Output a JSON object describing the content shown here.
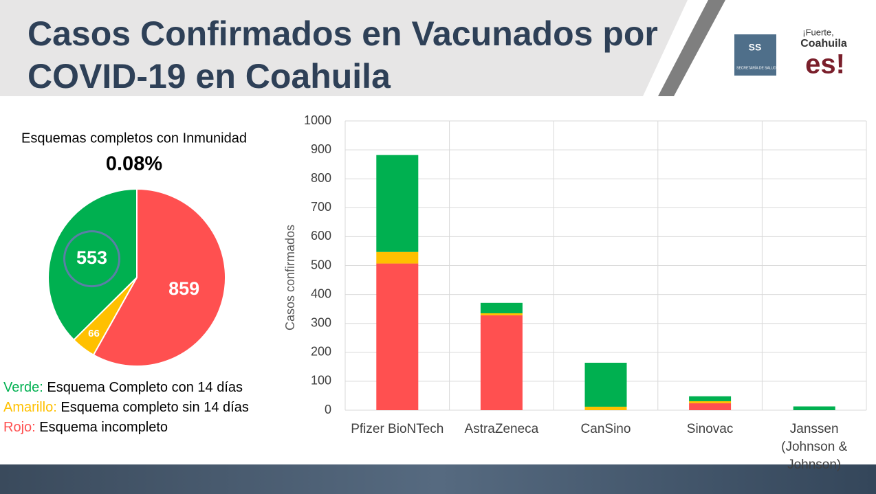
{
  "header": {
    "title": "Casos Confirmados en Vacunados por COVID-19 en Coahuila",
    "logo": [
      "SS",
      "SECRETARÍA DE SALUD",
      "¡Fuerte,",
      "Coahuila",
      "es!"
    ]
  },
  "chart_data": [
    {
      "type": "pie",
      "title": "Esquemas completos con Inmunidad",
      "subtitle": "0.08%",
      "categories": [
        "Verde:",
        "Amarillo:",
        "Rojo:"
      ],
      "descriptions": [
        "Esquema Completo con 14 días",
        "Esquema completo sin 14 días",
        "Esquema incompleto"
      ],
      "values": [
        553,
        66,
        859
      ],
      "colors": [
        "#00b050",
        "#ffc000",
        "#ff5050"
      ]
    },
    {
      "type": "stacked_bar",
      "y_label": "Casos confirmados",
      "categories": [
        "Pfizer BioNTech",
        "AstraZeneca",
        "CanSino",
        "Sinovac",
        "Janssen (Johnson & Johnson)"
      ],
      "series": [
        {
          "name": "Rojo",
          "color": "#ff5050",
          "values": [
            507,
            328,
            0,
            24,
            0
          ]
        },
        {
          "name": "Amarillo",
          "color": "#ffc000",
          "values": [
            40,
            7,
            12,
            7,
            0
          ]
        },
        {
          "name": "Verde",
          "color": "#00b050",
          "values": [
            335,
            36,
            152,
            17,
            13
          ]
        }
      ],
      "ylim": [
        0,
        1000
      ],
      "yticks": [
        0,
        100,
        200,
        300,
        400,
        500,
        600,
        700,
        800,
        900,
        1000
      ],
      "grid": true
    }
  ]
}
